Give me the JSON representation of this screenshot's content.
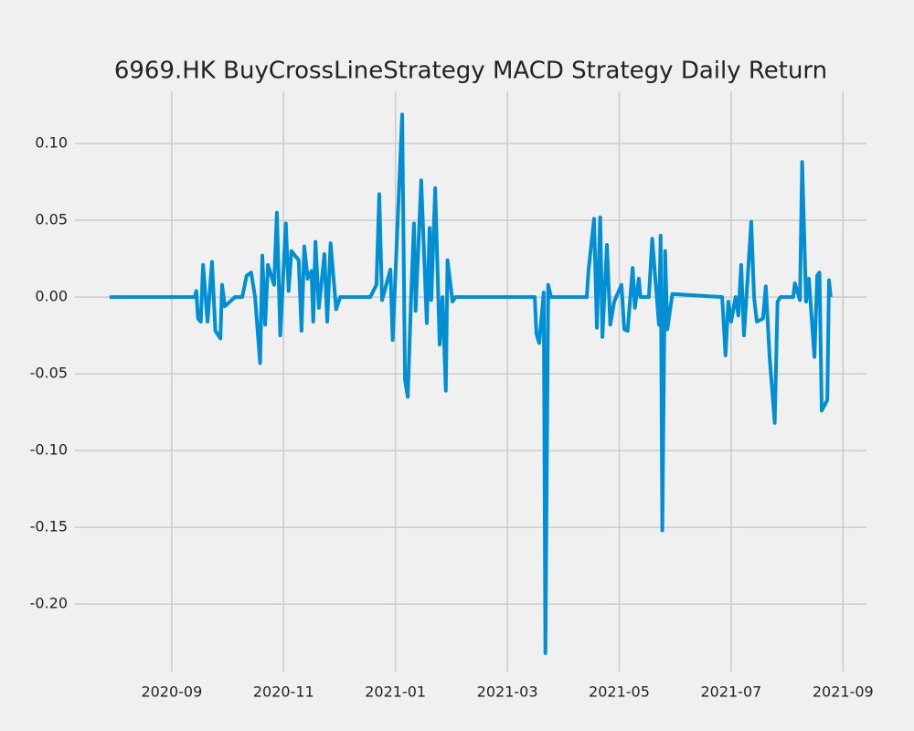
{
  "chart_data": {
    "type": "line",
    "title": "6969.HK  BuyCrossLineStrategy MACD Strategy Daily Return",
    "xlim": [
      7.27,
      21.42
    ],
    "xticks": [
      {
        "value": 9,
        "label": "2020-09"
      },
      {
        "value": 11,
        "label": "2020-11"
      },
      {
        "value": 13,
        "label": "2021-01"
      },
      {
        "value": 15,
        "label": "2021-03"
      },
      {
        "value": 17,
        "label": "2021-05"
      },
      {
        "value": 19,
        "label": "2021-07"
      },
      {
        "value": 21,
        "label": "2021-09"
      }
    ],
    "ylim": [
      -0.244,
      0.134
    ],
    "yticks": [
      {
        "value": -0.2,
        "label": "-0.20"
      },
      {
        "value": -0.15,
        "label": "-0.15"
      },
      {
        "value": -0.1,
        "label": "-0.10"
      },
      {
        "value": -0.05,
        "label": "-0.05"
      },
      {
        "value": 0,
        "label": "0.00"
      },
      {
        "value": 0.05,
        "label": "0.05"
      },
      {
        "value": 0.1,
        "label": "0.10"
      }
    ],
    "grid": true,
    "series": [
      {
        "color": "#008fd5",
        "x": [
          7.89,
          9.41,
          9.44,
          9.47,
          9.52,
          9.56,
          9.64,
          9.72,
          9.78,
          9.87,
          9.9,
          9.95,
          10.13,
          10.26,
          10.34,
          10.42,
          10.49,
          10.58,
          10.62,
          10.67,
          10.72,
          10.83,
          10.88,
          10.94,
          11.04,
          11.09,
          11.14,
          11.27,
          11.32,
          11.37,
          11.43,
          11.5,
          11.53,
          11.57,
          11.63,
          11.73,
          11.78,
          11.84,
          11.94,
          12.01,
          12.55,
          12.66,
          12.71,
          12.76,
          12.91,
          12.95,
          13.12,
          13.17,
          13.22,
          13.28,
          13.33,
          13.36,
          13.46,
          13.56,
          13.61,
          13.64,
          13.71,
          13.79,
          13.84,
          13.9,
          13.93,
          14.02,
          14.07,
          15.49,
          15.52,
          15.57,
          15.65,
          15.68,
          15.73,
          15.78,
          16.42,
          16.45,
          16.55,
          16.6,
          16.66,
          16.7,
          16.78,
          16.84,
          16.91,
          17.04,
          17.09,
          17.15,
          17.24,
          17.28,
          17.35,
          17.38,
          17.53,
          17.59,
          17.71,
          17.74,
          17.77,
          17.82,
          17.86,
          17.95,
          18.84,
          18.9,
          18.95,
          19.0,
          19.08,
          19.13,
          19.18,
          19.23,
          19.36,
          19.41,
          19.46,
          19.57,
          19.62,
          19.69,
          19.78,
          19.83,
          19.88,
          20.11,
          20.14,
          20.23,
          20.27,
          20.34,
          20.39,
          20.49,
          20.54,
          20.58,
          20.62,
          20.72,
          20.75,
          20.78
        ],
        "values": [
          0,
          0,
          0.004,
          -0.014,
          -0.016,
          0.021,
          -0.016,
          0.023,
          -0.022,
          -0.027,
          0.008,
          -0.006,
          0,
          0,
          0.014,
          0.016,
          0,
          -0.043,
          0.027,
          -0.018,
          0.021,
          0.008,
          0.055,
          -0.025,
          0.048,
          0.004,
          0.03,
          0.024,
          -0.022,
          0.033,
          0.012,
          0.017,
          -0.016,
          0.036,
          -0.007,
          0.028,
          -0.016,
          0.035,
          -0.008,
          0,
          0,
          0.008,
          0.067,
          -0.002,
          0.018,
          -0.028,
          0.119,
          -0.054,
          -0.065,
          0,
          0.048,
          -0.009,
          0.076,
          -0.017,
          0.045,
          -0.002,
          0.071,
          -0.031,
          0,
          -0.061,
          0.024,
          -0.003,
          0,
          0,
          -0.024,
          -0.03,
          0.003,
          -0.232,
          0.008,
          0,
          0,
          0.017,
          0.051,
          -0.02,
          0.052,
          -0.026,
          0.034,
          -0.018,
          -0.003,
          0.008,
          -0.021,
          -0.022,
          0.019,
          -0.007,
          0.012,
          0,
          0,
          0.038,
          -0.018,
          0.04,
          -0.152,
          0.03,
          -0.021,
          0.002,
          0,
          -0.038,
          -0.003,
          -0.016,
          0,
          -0.012,
          0.021,
          -0.025,
          0.049,
          0,
          -0.016,
          -0.014,
          0.007,
          -0.04,
          -0.082,
          -0.003,
          0,
          0,
          0.009,
          -0.002,
          0.088,
          -0.003,
          0.012,
          -0.039,
          0.014,
          0.016,
          -0.074,
          -0.067,
          0.011,
          0
        ]
      }
    ]
  }
}
